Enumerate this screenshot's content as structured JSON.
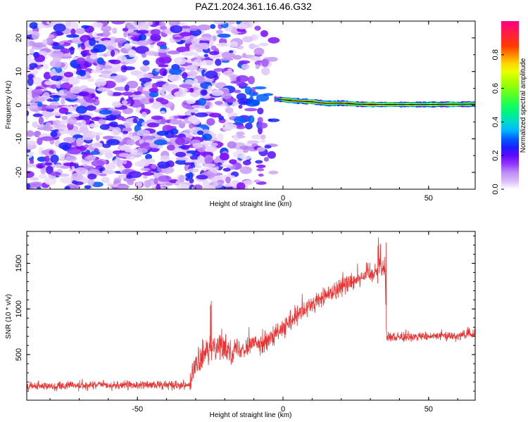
{
  "title": "PAZ1.2024.361.16.46.G32",
  "chart_data": [
    {
      "type": "heatmap",
      "xlabel": "Height of straight line (km)",
      "ylabel": "Frequency (Hz)",
      "xlim": [
        -88,
        66
      ],
      "ylim": [
        -25,
        25
      ],
      "xticks": [
        -50,
        0,
        50
      ],
      "xtick_labels": [
        "-50",
        "0",
        "50"
      ],
      "yticks": [
        -20,
        -10,
        0,
        10,
        20
      ],
      "ytick_labels": [
        "-20",
        "-10",
        "0",
        "10",
        "20"
      ],
      "colorbar": {
        "label": "Normalized spectral amplitude",
        "range": [
          0,
          1
        ],
        "ticks": [
          0.0,
          0.2,
          0.4,
          0.6,
          0.8
        ],
        "tick_labels": [
          "0.0",
          "0.2",
          "0.4",
          "0.6",
          "0.8"
        ]
      },
      "noise_region": {
        "x_range": [
          -88,
          -3
        ],
        "y_range": [
          -25,
          25
        ],
        "amplitude_range": [
          0.02,
          0.3
        ]
      },
      "signal_track": [
        {
          "x": -3,
          "y": 1.8,
          "amp": 0.35
        },
        {
          "x": 0,
          "y": 1.6,
          "amp": 0.95
        },
        {
          "x": 5,
          "y": 1.2,
          "amp": 0.9
        },
        {
          "x": 10,
          "y": 1.0,
          "amp": 0.95
        },
        {
          "x": 15,
          "y": 0.5,
          "amp": 0.85
        },
        {
          "x": 20,
          "y": 0.6,
          "amp": 0.9
        },
        {
          "x": 25,
          "y": 0.3,
          "amp": 0.95
        },
        {
          "x": 30,
          "y": 0.2,
          "amp": 1.0
        },
        {
          "x": 40,
          "y": 0.2,
          "amp": 0.9
        },
        {
          "x": 50,
          "y": 0.2,
          "amp": 0.85
        },
        {
          "x": 66,
          "y": 0.3,
          "amp": 0.85
        }
      ]
    },
    {
      "type": "line",
      "xlabel": "Height of straight line (km)",
      "ylabel": "SNR (10 * v/v)",
      "xlim": [
        -88,
        66
      ],
      "ylim": [
        0,
        1850
      ],
      "xticks": [
        -50,
        0,
        50
      ],
      "xtick_labels": [
        "-50",
        "0",
        "50"
      ],
      "yticks": [
        500,
        1000,
        1500
      ],
      "ytick_labels": [
        "500",
        "1000",
        "1500"
      ],
      "color": "#ee3030",
      "series_trend": [
        {
          "x": -88,
          "y": 150
        },
        {
          "x": -70,
          "y": 160
        },
        {
          "x": -50,
          "y": 165
        },
        {
          "x": -32,
          "y": 170
        },
        {
          "x": -30,
          "y": 380
        },
        {
          "x": -25,
          "y": 560
        },
        {
          "x": -22,
          "y": 620
        },
        {
          "x": -20,
          "y": 560
        },
        {
          "x": -15,
          "y": 560
        },
        {
          "x": -10,
          "y": 620
        },
        {
          "x": -5,
          "y": 650
        },
        {
          "x": 0,
          "y": 780
        },
        {
          "x": 5,
          "y": 920
        },
        {
          "x": 10,
          "y": 1050
        },
        {
          "x": 15,
          "y": 1150
        },
        {
          "x": 20,
          "y": 1250
        },
        {
          "x": 25,
          "y": 1330
        },
        {
          "x": 30,
          "y": 1400
        },
        {
          "x": 35,
          "y": 1450
        },
        {
          "x": 35.6,
          "y": 700
        },
        {
          "x": 40,
          "y": 690
        },
        {
          "x": 50,
          "y": 700
        },
        {
          "x": 60,
          "y": 710
        },
        {
          "x": 66,
          "y": 720
        }
      ],
      "noise_amplitude": [
        {
          "x_from": -88,
          "x_to": -32,
          "amp": 85
        },
        {
          "x_from": -32,
          "x_to": -15,
          "amp": 260
        },
        {
          "x_from": -15,
          "x_to": 35.5,
          "amp": 200
        },
        {
          "x_from": 35.5,
          "x_to": 66,
          "amp": 95
        }
      ]
    }
  ],
  "colors": {
    "line": "#ee3030",
    "signal_core": "#000000",
    "frame": "#000000"
  }
}
